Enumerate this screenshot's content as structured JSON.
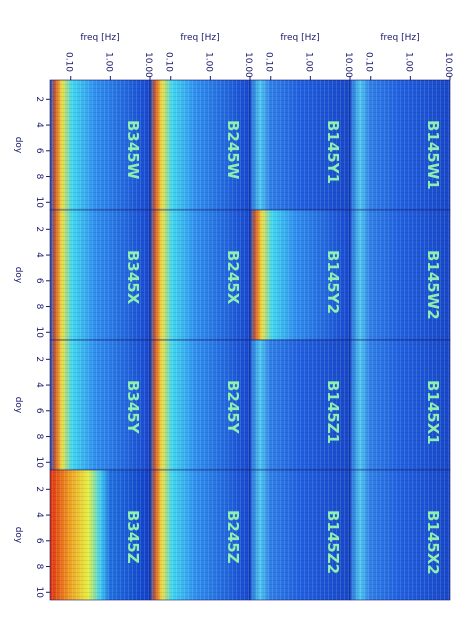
{
  "chart_data": {
    "type": "spectrogram-grid",
    "xlabel": "freq [Hz]",
    "ylabel": "doy",
    "xscale": "log",
    "xlim": [
      0.03,
      10
    ],
    "xticks": [
      {
        "value": 0.1,
        "label": "0.10"
      },
      {
        "value": 1,
        "label": "1.00"
      },
      {
        "value": 10,
        "label": "10.00"
      }
    ],
    "ylim": [
      0.5,
      10.6
    ],
    "yticks": [
      2,
      4,
      6,
      8,
      10
    ],
    "columns": [
      [
        "B345W",
        "B345X",
        "B345Y",
        "B345Z"
      ],
      [
        "B245W",
        "B245X",
        "B245Y",
        "B245Z"
      ],
      [
        "B145Y1",
        "B145Y2",
        "B145Z1",
        "B145Z2"
      ],
      [
        "B145W1",
        "B145W2",
        "B145X1",
        "B145X2"
      ]
    ]
  }
}
